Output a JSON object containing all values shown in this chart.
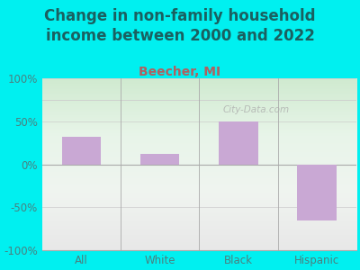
{
  "title": "Change in non-family household\nincome between 2000 and 2022",
  "subtitle": "Beecher, MI",
  "categories": [
    "All",
    "White",
    "Black",
    "Hispanic"
  ],
  "values": [
    32,
    12,
    50,
    -65
  ],
  "bar_color": "#c9a8d4",
  "bar_width": 0.5,
  "ylim": [
    -100,
    100
  ],
  "yticks": [
    -100,
    -50,
    0,
    50,
    100
  ],
  "ytick_labels": [
    "-100%",
    "-50%",
    "0%",
    "50%",
    "100%"
  ],
  "bg_outer": "#00f0f0",
  "title_fontsize": 12,
  "subtitle_fontsize": 10,
  "subtitle_color": "#b06060",
  "watermark": "City-Data.com",
  "title_color": "#1a6060",
  "tick_label_color": "#4a8080"
}
